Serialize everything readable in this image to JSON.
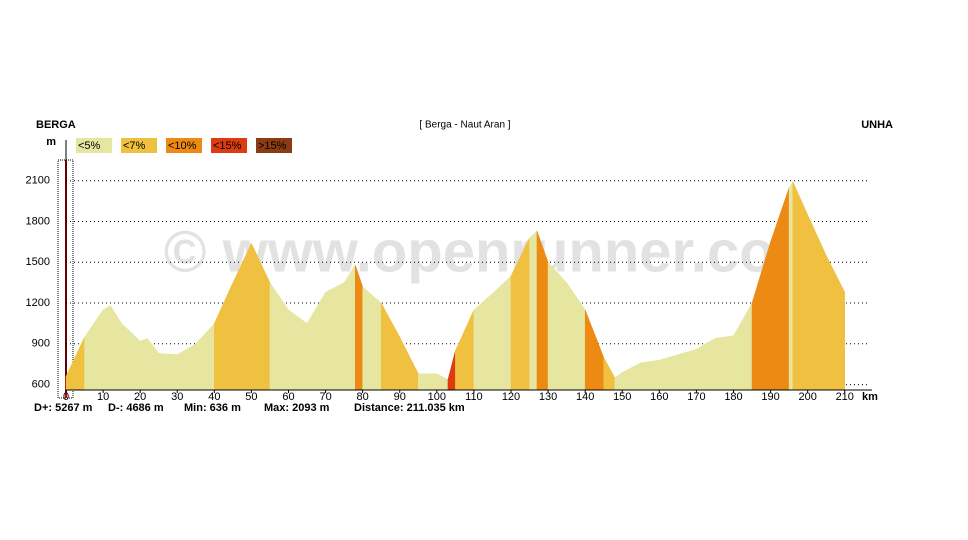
{
  "chart_data": {
    "type": "elevation",
    "title": "[ Berga - Naut Aran ]",
    "start_label": "BERGA",
    "end_label": "UNHA",
    "y_unit": "m",
    "x_unit": "km",
    "watermark": "© www.openrunner.com",
    "stats": [
      "D+: 5267 m",
      "D-: 4686 m",
      "Min: 636 m",
      "Max: 2093 m",
      "Distance: 211.035 km"
    ],
    "legend": [
      {
        "label": "<5%",
        "max": 5,
        "color": "#e6e6a0"
      },
      {
        "label": "<7%",
        "max": 7,
        "color": "#f0c040"
      },
      {
        "label": "<10%",
        "max": 10,
        "color": "#ec8a14"
      },
      {
        "label": "<15%",
        "max": 15,
        "color": "#dc3c10"
      },
      {
        "label": ">15%",
        "max": 100,
        "color": "#8c3c14"
      }
    ],
    "x": [
      0,
      5,
      10,
      12,
      15,
      20,
      22,
      25,
      30,
      35,
      40,
      45,
      50,
      55,
      60,
      65,
      70,
      75,
      78,
      80,
      85,
      90,
      95,
      100,
      103,
      105,
      110,
      115,
      120,
      125,
      127,
      130,
      135,
      140,
      145,
      148,
      150,
      155,
      160,
      165,
      170,
      175,
      180,
      185,
      190,
      195,
      196,
      200,
      205,
      210
    ],
    "values": [
      660,
      950,
      1150,
      1180,
      1050,
      920,
      940,
      830,
      820,
      900,
      1050,
      1350,
      1640,
      1350,
      1150,
      1050,
      1280,
      1350,
      1480,
      1320,
      1200,
      950,
      680,
      680,
      636,
      850,
      1150,
      1270,
      1400,
      1680,
      1730,
      1500,
      1350,
      1150,
      800,
      650,
      690,
      760,
      780,
      820,
      860,
      940,
      960,
      1200,
      1650,
      2050,
      2093,
      1850,
      1550,
      1280
    ],
    "xlim": [
      0,
      216
    ],
    "ylim": [
      560,
      2400
    ],
    "xticks": [
      0,
      10,
      20,
      30,
      40,
      50,
      60,
      70,
      80,
      90,
      100,
      110,
      120,
      130,
      140,
      150,
      160,
      170,
      180,
      190,
      200,
      210
    ],
    "yticks": [
      600,
      900,
      1200,
      1500,
      1800,
      2100
    ],
    "grid": true
  }
}
